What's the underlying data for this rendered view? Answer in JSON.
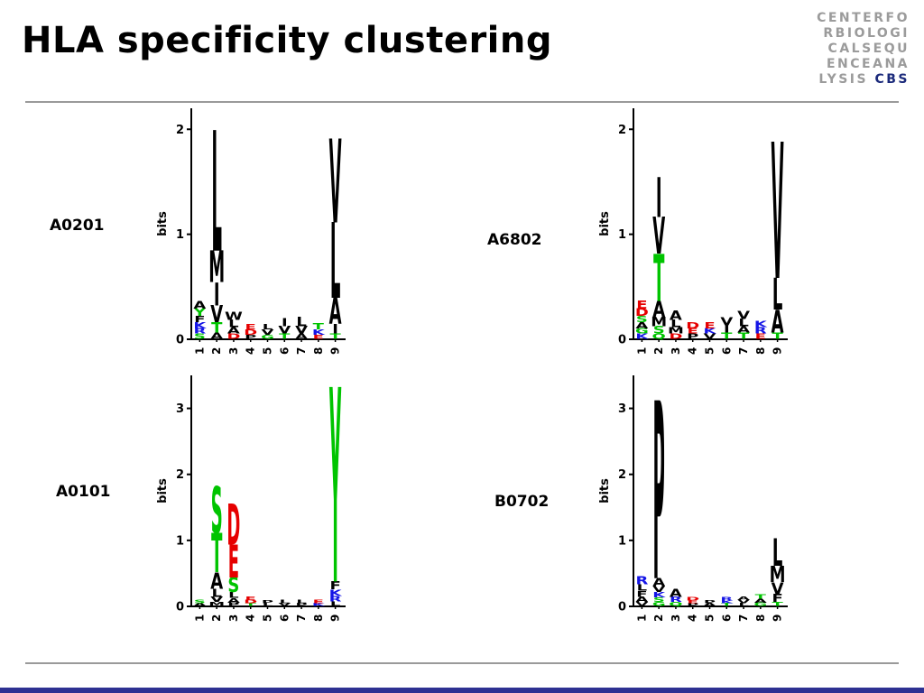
{
  "slide": {
    "title": "HLA specificity clustering",
    "logo": {
      "lines": [
        "CENTERFO",
        "RBIOLOGI",
        "CALSEQU",
        "ENCEANA"
      ],
      "tail_gray": "LYSIS ",
      "tail_accent": "CBS",
      "gray_color": "#9b9b9b",
      "accent_color": "#1b2a7b"
    },
    "footer_accent_color": "#2e3192"
  },
  "aa_colors": {
    "A": "#000000",
    "V": "#000000",
    "L": "#000000",
    "I": "#000000",
    "M": "#000000",
    "F": "#000000",
    "W": "#000000",
    "P": "#000000",
    "C": "#000000",
    "G": "#00c400",
    "S": "#00c400",
    "T": "#00c400",
    "Y": "#00c400",
    "N": "#00c400",
    "Q": "#00c400",
    "D": "#e60000",
    "E": "#e60000",
    "K": "#1414e6",
    "R": "#1414e6",
    "H": "#1414e6"
  },
  "chart_data": [
    {
      "type": "sequence-logo",
      "allele": "A0201",
      "ylabel": "bits",
      "ymax": 2.2,
      "yticks": [
        0,
        1,
        2
      ],
      "xticklabels": [
        "1",
        "2",
        "3",
        "4",
        "5",
        "6",
        "7",
        "8",
        "9"
      ],
      "stacks": [
        [
          [
            "S",
            0.05
          ],
          [
            "R",
            0.05
          ],
          [
            "K",
            0.06
          ],
          [
            "F",
            0.06
          ],
          [
            "Y",
            0.07
          ],
          [
            "A",
            0.07
          ]
        ],
        [
          [
            "A",
            0.06
          ],
          [
            "T",
            0.1
          ],
          [
            "V",
            0.16
          ],
          [
            "I",
            0.22
          ],
          [
            "M",
            0.3
          ],
          [
            "L",
            1.15
          ]
        ],
        [
          [
            "D",
            0.05
          ],
          [
            "A",
            0.06
          ],
          [
            "L",
            0.07
          ],
          [
            "W",
            0.08
          ]
        ],
        [
          [
            "P",
            0.04
          ],
          [
            "D",
            0.05
          ],
          [
            "E",
            0.05
          ]
        ],
        [
          [
            "G",
            0.04
          ],
          [
            "V",
            0.05
          ],
          [
            "L",
            0.05
          ]
        ],
        [
          [
            "T",
            0.05
          ],
          [
            "V",
            0.07
          ],
          [
            "I",
            0.08
          ]
        ],
        [
          [
            "A",
            0.05
          ],
          [
            "V",
            0.07
          ],
          [
            "L",
            0.09
          ]
        ],
        [
          [
            "E",
            0.04
          ],
          [
            "K",
            0.05
          ],
          [
            "T",
            0.06
          ]
        ],
        [
          [
            "T",
            0.05
          ],
          [
            "I",
            0.09
          ],
          [
            "A",
            0.25
          ],
          [
            "L",
            0.72
          ],
          [
            "V",
            0.8
          ]
        ]
      ]
    },
    {
      "type": "sequence-logo",
      "allele": "A6802",
      "ylabel": "bits",
      "ymax": 2.2,
      "yticks": [
        0,
        1,
        2
      ],
      "xticklabels": [
        "1",
        "2",
        "3",
        "4",
        "5",
        "6",
        "7",
        "8",
        "9"
      ],
      "stacks": [
        [
          [
            "K",
            0.05
          ],
          [
            "G",
            0.05
          ],
          [
            "A",
            0.06
          ],
          [
            "S",
            0.06
          ],
          [
            "D",
            0.07
          ],
          [
            "E",
            0.08
          ]
        ],
        [
          [
            "Q",
            0.05
          ],
          [
            "S",
            0.07
          ],
          [
            "M",
            0.09
          ],
          [
            "A",
            0.15
          ],
          [
            "T",
            0.45
          ],
          [
            "V",
            0.35
          ],
          [
            "I",
            0.38
          ]
        ],
        [
          [
            "D",
            0.05
          ],
          [
            "M",
            0.06
          ],
          [
            "L",
            0.07
          ],
          [
            "A",
            0.09
          ]
        ],
        [
          [
            "P",
            0.05
          ],
          [
            "E",
            0.05
          ],
          [
            "D",
            0.06
          ]
        ],
        [
          [
            "V",
            0.05
          ],
          [
            "K",
            0.05
          ],
          [
            "E",
            0.06
          ]
        ],
        [
          [
            "T",
            0.06
          ],
          [
            "I",
            0.07
          ],
          [
            "V",
            0.08
          ]
        ],
        [
          [
            "T",
            0.06
          ],
          [
            "A",
            0.06
          ],
          [
            "L",
            0.07
          ],
          [
            "V",
            0.08
          ]
        ],
        [
          [
            "E",
            0.05
          ],
          [
            "R",
            0.06
          ],
          [
            "K",
            0.06
          ]
        ],
        [
          [
            "T",
            0.06
          ],
          [
            "A",
            0.22
          ],
          [
            "L",
            0.3
          ],
          [
            "V",
            1.3
          ]
        ]
      ]
    },
    {
      "type": "sequence-logo",
      "allele": "A0101",
      "ylabel": "bits",
      "ymax": 3.5,
      "yticks": [
        0,
        1,
        2,
        3
      ],
      "xticklabels": [
        "1",
        "2",
        "3",
        "4",
        "5",
        "6",
        "7",
        "8",
        "9"
      ],
      "stacks": [
        [
          [
            "A",
            0.04
          ],
          [
            "S",
            0.05
          ]
        ],
        [
          [
            "M",
            0.06
          ],
          [
            "V",
            0.08
          ],
          [
            "L",
            0.12
          ],
          [
            "A",
            0.25
          ],
          [
            "T",
            0.6
          ],
          [
            "S",
            0.7
          ]
        ],
        [
          [
            "P",
            0.05
          ],
          [
            "A",
            0.07
          ],
          [
            "L",
            0.09
          ],
          [
            "S",
            0.22
          ],
          [
            "E",
            0.5
          ],
          [
            "D",
            0.62
          ]
        ],
        [
          [
            "T",
            0.04
          ],
          [
            "D",
            0.05
          ],
          [
            "E",
            0.05
          ]
        ],
        [
          [
            "L",
            0.04
          ],
          [
            "P",
            0.04
          ]
        ],
        [
          [
            "V",
            0.04
          ],
          [
            "L",
            0.05
          ]
        ],
        [
          [
            "P",
            0.04
          ],
          [
            "L",
            0.05
          ]
        ],
        [
          [
            "K",
            0.04
          ],
          [
            "E",
            0.05
          ]
        ],
        [
          [
            "L",
            0.07
          ],
          [
            "R",
            0.08
          ],
          [
            "K",
            0.1
          ],
          [
            "F",
            0.12
          ],
          [
            "Y",
            2.95
          ]
        ]
      ]
    },
    {
      "type": "sequence-logo",
      "allele": "B0702",
      "ylabel": "bits",
      "ymax": 3.5,
      "yticks": [
        0,
        1,
        2,
        3
      ],
      "xticklabels": [
        "1",
        "2",
        "3",
        "4",
        "5",
        "6",
        "7",
        "8",
        "9"
      ],
      "stacks": [
        [
          [
            "V",
            0.06
          ],
          [
            "A",
            0.08
          ],
          [
            "F",
            0.09
          ],
          [
            "L",
            0.1
          ],
          [
            "R",
            0.12
          ]
        ],
        [
          [
            "G",
            0.06
          ],
          [
            "S",
            0.07
          ],
          [
            "K",
            0.08
          ],
          [
            "V",
            0.09
          ],
          [
            "A",
            0.12
          ],
          [
            "P",
            2.7
          ]
        ],
        [
          [
            "Q",
            0.06
          ],
          [
            "R",
            0.08
          ],
          [
            "A",
            0.12
          ]
        ],
        [
          [
            "P",
            0.04
          ],
          [
            "E",
            0.04
          ],
          [
            "D",
            0.05
          ]
        ],
        [
          [
            "A",
            0.04
          ],
          [
            "P",
            0.04
          ]
        ],
        [
          [
            "T",
            0.04
          ],
          [
            "K",
            0.04
          ],
          [
            "R",
            0.05
          ]
        ],
        [
          [
            "L",
            0.04
          ],
          [
            "V",
            0.05
          ],
          [
            "A",
            0.05
          ]
        ],
        [
          [
            "G",
            0.05
          ],
          [
            "A",
            0.06
          ],
          [
            "T",
            0.07
          ]
        ],
        [
          [
            "T",
            0.06
          ],
          [
            "F",
            0.12
          ],
          [
            "V",
            0.18
          ],
          [
            "M",
            0.25
          ],
          [
            "L",
            0.42
          ]
        ]
      ]
    }
  ]
}
